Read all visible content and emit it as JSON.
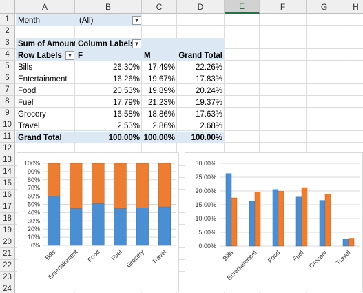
{
  "columns": [
    "A",
    "B",
    "C",
    "D",
    "E",
    "F",
    "G",
    "H"
  ],
  "selected_column": "E",
  "rows": [
    "1",
    "2",
    "3",
    "4",
    "5",
    "6",
    "7",
    "8",
    "9",
    "10",
    "11",
    "12",
    "13",
    "14",
    "15",
    "16",
    "17",
    "18",
    "19",
    "20",
    "21",
    "22",
    "23",
    "24"
  ],
  "filter": {
    "label": "Month",
    "value": "(All)"
  },
  "pivot": {
    "sum_label": "Sum of Amount",
    "col_labels": "Column Labels",
    "row_labels": "Row Labels",
    "col_f": "F",
    "col_m": "M",
    "grand_total": "Grand Total",
    "data_rows": [
      {
        "label": "Bills",
        "f": "26.30%",
        "m": "17.49%",
        "gt": "22.26%"
      },
      {
        "label": "Entertainment",
        "f": "16.26%",
        "m": "19.67%",
        "gt": "17.83%"
      },
      {
        "label": "Food",
        "f": "20.53%",
        "m": "19.89%",
        "gt": "20.24%"
      },
      {
        "label": "Fuel",
        "f": "17.79%",
        "m": "21.23%",
        "gt": "19.37%"
      },
      {
        "label": "Grocery",
        "f": "16.58%",
        "m": "18.86%",
        "gt": "17.63%"
      },
      {
        "label": "Travel",
        "f": "2.53%",
        "m": "2.86%",
        "gt": "2.68%"
      }
    ],
    "total_row": {
      "label": "Grand Total",
      "f": "100.00%",
      "m": "100.00%",
      "gt": "100.00%"
    }
  },
  "colors": {
    "series_f": "#4a8fd3",
    "series_m": "#ed7d31",
    "pivot_blue": "#dde8f5"
  },
  "chart_data": [
    {
      "type": "bar",
      "stacked": "percent",
      "categories": [
        "Bills",
        "Entertainment",
        "Food",
        "Fuel",
        "Grocery",
        "Travel"
      ],
      "series": [
        {
          "name": "F",
          "values": [
            60,
            45,
            51,
            45,
            46,
            47
          ]
        },
        {
          "name": "M",
          "values": [
            40,
            55,
            49,
            55,
            54,
            53
          ]
        }
      ],
      "ylim": [
        0,
        100
      ],
      "yticks": [
        "0%",
        "10%",
        "20%",
        "30%",
        "40%",
        "50%",
        "60%",
        "70%",
        "80%",
        "90%",
        "100%"
      ],
      "grid": true
    },
    {
      "type": "bar",
      "categories": [
        "Bills",
        "Entertainment",
        "Food",
        "Fuel",
        "Grocery",
        "Travel"
      ],
      "series": [
        {
          "name": "F",
          "values": [
            26.3,
            16.26,
            20.53,
            17.79,
            16.58,
            2.53
          ]
        },
        {
          "name": "M",
          "values": [
            17.49,
            19.67,
            19.89,
            21.23,
            18.86,
            2.86
          ]
        }
      ],
      "ylim": [
        0,
        30
      ],
      "yticks": [
        "0.00%",
        "5.00%",
        "10.00%",
        "15.00%",
        "20.00%",
        "25.00%",
        "30.00%"
      ],
      "grid": true
    }
  ]
}
